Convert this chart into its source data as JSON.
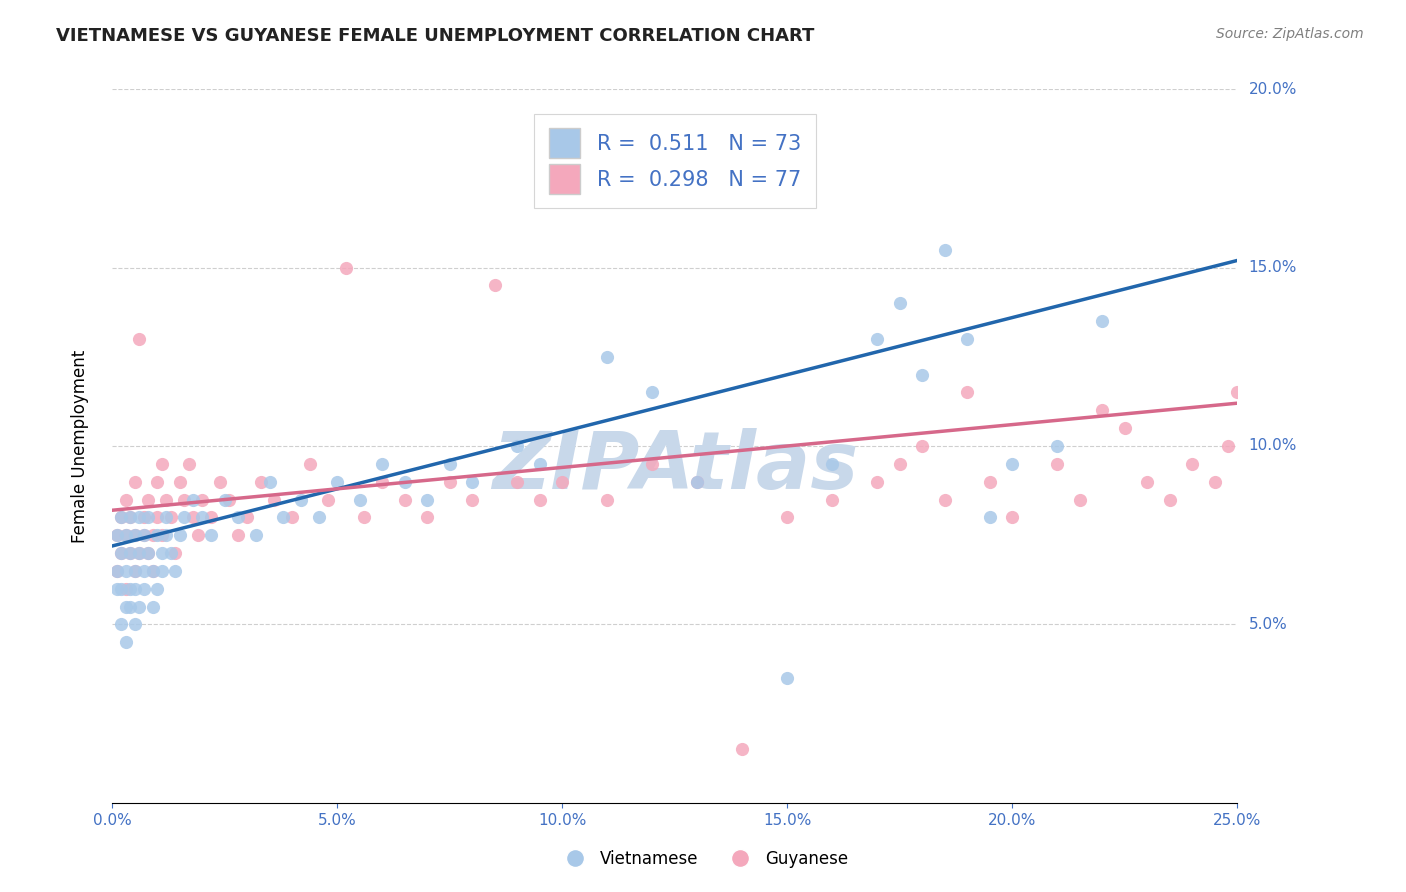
{
  "title": "VIETNAMESE VS GUYANESE FEMALE UNEMPLOYMENT CORRELATION CHART",
  "source": "Source: ZipAtlas.com",
  "ylabel": "Female Unemployment",
  "xlim": [
    0.0,
    0.25
  ],
  "ylim": [
    0.0,
    0.2
  ],
  "xticks": [
    0.0,
    0.05,
    0.1,
    0.15,
    0.2,
    0.25
  ],
  "yticks": [
    0.0,
    0.05,
    0.1,
    0.15,
    0.2
  ],
  "xtick_labels": [
    "0.0%",
    "5.0%",
    "10.0%",
    "15.0%",
    "20.0%",
    "25.0%"
  ],
  "ytick_labels": [
    "",
    "5.0%",
    "10.0%",
    "15.0%",
    "20.0%"
  ],
  "blue_color": "#a8c8e8",
  "pink_color": "#f4a8bc",
  "blue_line_color": "#2166ac",
  "pink_line_color": "#d6688a",
  "R_blue": 0.511,
  "N_blue": 73,
  "R_pink": 0.298,
  "N_pink": 77,
  "watermark": "ZIPAtlas",
  "watermark_color": "#c8d8ea",
  "title_color": "#222222",
  "axis_label_color": "#4472c4",
  "grid_color": "#bbbbbb",
  "background_color": "#ffffff",
  "blue_line_x0": 0.0,
  "blue_line_y0": 0.072,
  "blue_line_x1": 0.25,
  "blue_line_y1": 0.152,
  "pink_line_x0": 0.0,
  "pink_line_y0": 0.082,
  "pink_line_x1": 0.25,
  "pink_line_y1": 0.112,
  "blue_points_x": [
    0.001,
    0.001,
    0.001,
    0.002,
    0.002,
    0.002,
    0.002,
    0.003,
    0.003,
    0.003,
    0.003,
    0.004,
    0.004,
    0.004,
    0.004,
    0.005,
    0.005,
    0.005,
    0.005,
    0.006,
    0.006,
    0.006,
    0.007,
    0.007,
    0.007,
    0.008,
    0.008,
    0.009,
    0.009,
    0.01,
    0.01,
    0.011,
    0.011,
    0.012,
    0.012,
    0.013,
    0.014,
    0.015,
    0.016,
    0.018,
    0.02,
    0.022,
    0.025,
    0.028,
    0.032,
    0.035,
    0.038,
    0.042,
    0.046,
    0.05,
    0.055,
    0.06,
    0.065,
    0.07,
    0.075,
    0.08,
    0.09,
    0.095,
    0.1,
    0.11,
    0.12,
    0.13,
    0.15,
    0.16,
    0.17,
    0.175,
    0.18,
    0.185,
    0.19,
    0.195,
    0.2,
    0.21,
    0.22
  ],
  "blue_points_y": [
    0.065,
    0.075,
    0.06,
    0.07,
    0.06,
    0.05,
    0.08,
    0.055,
    0.065,
    0.075,
    0.045,
    0.06,
    0.07,
    0.055,
    0.08,
    0.065,
    0.05,
    0.075,
    0.06,
    0.07,
    0.055,
    0.08,
    0.065,
    0.075,
    0.06,
    0.07,
    0.08,
    0.065,
    0.055,
    0.075,
    0.06,
    0.07,
    0.065,
    0.075,
    0.08,
    0.07,
    0.065,
    0.075,
    0.08,
    0.085,
    0.08,
    0.075,
    0.085,
    0.08,
    0.075,
    0.09,
    0.08,
    0.085,
    0.08,
    0.09,
    0.085,
    0.095,
    0.09,
    0.085,
    0.095,
    0.09,
    0.1,
    0.095,
    0.175,
    0.125,
    0.115,
    0.09,
    0.035,
    0.095,
    0.13,
    0.14,
    0.12,
    0.155,
    0.13,
    0.08,
    0.095,
    0.1,
    0.135
  ],
  "pink_points_x": [
    0.001,
    0.001,
    0.002,
    0.002,
    0.003,
    0.003,
    0.003,
    0.004,
    0.004,
    0.005,
    0.005,
    0.005,
    0.006,
    0.006,
    0.007,
    0.007,
    0.008,
    0.008,
    0.009,
    0.009,
    0.01,
    0.01,
    0.011,
    0.011,
    0.012,
    0.013,
    0.014,
    0.015,
    0.016,
    0.017,
    0.018,
    0.019,
    0.02,
    0.022,
    0.024,
    0.026,
    0.028,
    0.03,
    0.033,
    0.036,
    0.04,
    0.044,
    0.048,
    0.052,
    0.056,
    0.06,
    0.065,
    0.07,
    0.075,
    0.08,
    0.085,
    0.09,
    0.095,
    0.1,
    0.11,
    0.12,
    0.13,
    0.14,
    0.15,
    0.16,
    0.17,
    0.175,
    0.18,
    0.185,
    0.19,
    0.195,
    0.2,
    0.21,
    0.215,
    0.22,
    0.225,
    0.23,
    0.235,
    0.24,
    0.245,
    0.248,
    0.25
  ],
  "pink_points_y": [
    0.075,
    0.065,
    0.08,
    0.07,
    0.085,
    0.075,
    0.06,
    0.07,
    0.08,
    0.065,
    0.075,
    0.09,
    0.13,
    0.07,
    0.08,
    0.075,
    0.07,
    0.085,
    0.065,
    0.075,
    0.08,
    0.09,
    0.095,
    0.075,
    0.085,
    0.08,
    0.07,
    0.09,
    0.085,
    0.095,
    0.08,
    0.075,
    0.085,
    0.08,
    0.09,
    0.085,
    0.075,
    0.08,
    0.09,
    0.085,
    0.08,
    0.095,
    0.085,
    0.15,
    0.08,
    0.09,
    0.085,
    0.08,
    0.09,
    0.085,
    0.145,
    0.09,
    0.085,
    0.09,
    0.085,
    0.095,
    0.09,
    0.015,
    0.08,
    0.085,
    0.09,
    0.095,
    0.1,
    0.085,
    0.115,
    0.09,
    0.08,
    0.095,
    0.085,
    0.11,
    0.105,
    0.09,
    0.085,
    0.095,
    0.09,
    0.1,
    0.115
  ]
}
